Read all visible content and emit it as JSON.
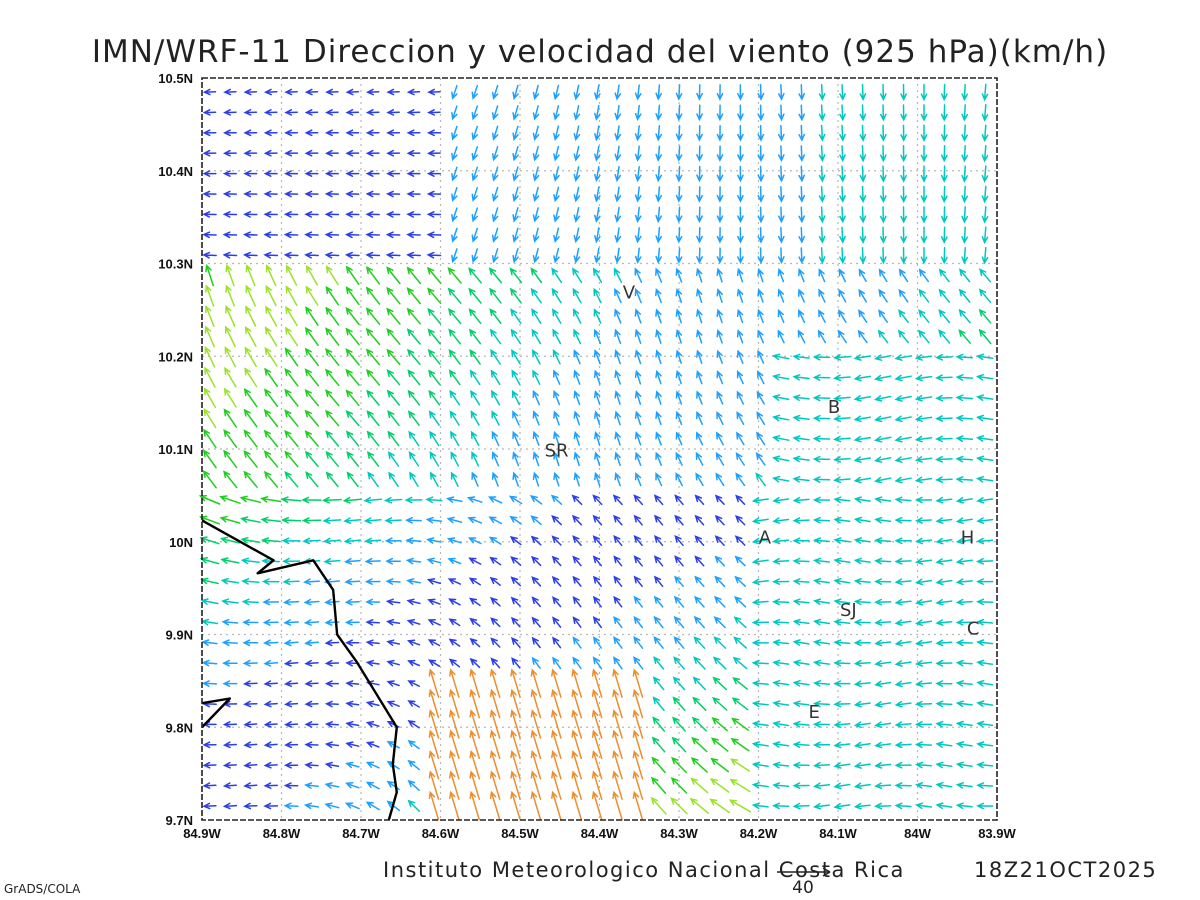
{
  "title": "IMN/WRF-11 Direccion y velocidad del viento (925 hPa)(km/h)",
  "footer": {
    "institution": "Instituto Meteorologico Nacional Costa Rica",
    "datetime": "18Z21OCT2025",
    "software": "GrADS/COLA"
  },
  "reference_vector": {
    "value": 40,
    "label": "40"
  },
  "map": {
    "lon_range": [
      -84.9,
      -83.9
    ],
    "lat_range": [
      9.7,
      10.5
    ],
    "grid": true,
    "x_ticks": [
      "84.9W",
      "84.8W",
      "84.7W",
      "84.6W",
      "84.5W",
      "84.4W",
      "84.3W",
      "84.2W",
      "84.1W",
      "84W",
      "83.9W"
    ],
    "y_ticks": [
      "10.5N",
      "10.4N",
      "10.3N",
      "10.2N",
      "10.1N",
      "10N",
      "9.9N",
      "9.8N",
      "9.7N"
    ],
    "coastline": [
      [
        -84.9,
        10.023
      ],
      [
        -84.81,
        9.98
      ],
      [
        -84.83,
        9.966
      ],
      [
        -84.76,
        9.98
      ],
      [
        -84.735,
        9.948
      ],
      [
        -84.73,
        9.9
      ],
      [
        -84.705,
        9.87
      ],
      [
        -84.655,
        9.8
      ],
      [
        -84.66,
        9.76
      ],
      [
        -84.655,
        9.73
      ],
      [
        -84.665,
        9.7
      ]
    ],
    "coastline_fragment": [
      [
        -84.9,
        9.8
      ],
      [
        -84.865,
        9.831
      ],
      [
        -84.9,
        9.826
      ]
    ],
    "cities": [
      {
        "label": "V",
        "lon": -84.363,
        "lat": 10.262
      },
      {
        "label": "B",
        "lon": -84.105,
        "lat": 10.139
      },
      {
        "label": "SR",
        "lon": -84.454,
        "lat": 10.092
      },
      {
        "label": "A",
        "lon": -84.192,
        "lat": 9.998
      },
      {
        "label": "H",
        "lon": -83.937,
        "lat": 9.998
      },
      {
        "label": "SJ",
        "lon": -84.087,
        "lat": 9.92
      },
      {
        "label": "C",
        "lon": -83.93,
        "lat": 9.9
      },
      {
        "label": "E",
        "lon": -84.13,
        "lat": 9.81
      }
    ],
    "colors": {
      "coastline": "#000000",
      "grid": "#b8b8b8",
      "wind_scale": [
        "#7a00d4",
        "#2c3fe6",
        "#1ea0ff",
        "#00c8c0",
        "#00cf6a",
        "#1fce1f",
        "#9be22d",
        "#e2e23c",
        "#f0b43c",
        "#ec8e2e",
        "#e82e2e"
      ]
    }
  }
}
